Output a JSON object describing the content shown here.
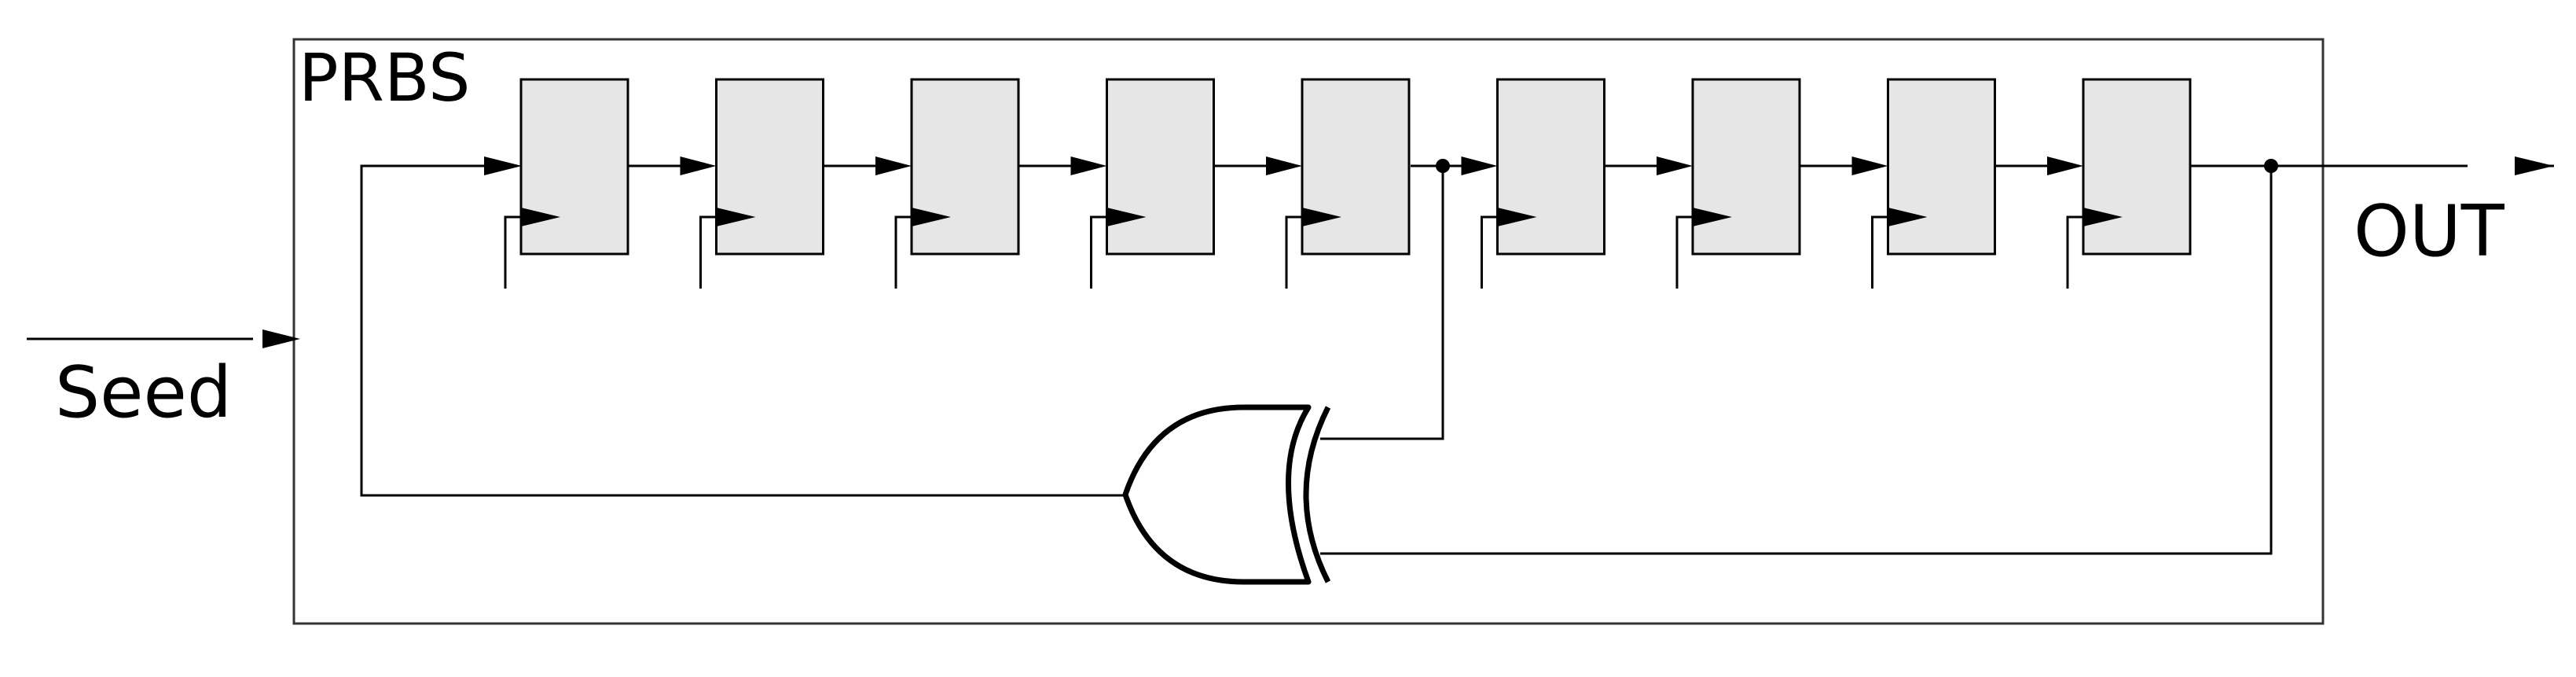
{
  "block_label": "PRBS",
  "input_label": "Seed",
  "output_label": "OUT",
  "register_count": 9,
  "tap_after_register": 5,
  "feedback_gate": "xor-gate",
  "colors": {
    "register_fill": "#e6e6e6",
    "stroke": "#000000",
    "background": "#ffffff"
  }
}
